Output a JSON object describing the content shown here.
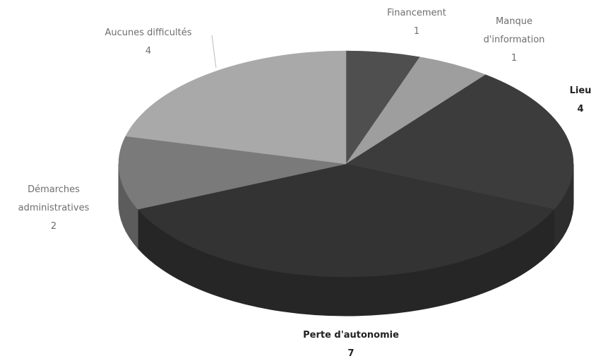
{
  "chart_data": {
    "type": "pie",
    "categories": [
      "Financement",
      "Manque d'information",
      "Lieu",
      "Perte d'autonomie",
      "Démarches administratives",
      "Aucunes difficultés"
    ],
    "values": [
      1,
      1,
      4,
      7,
      2,
      4
    ],
    "colors": [
      "#4f4f4f",
      "#9e9e9e",
      "#3c3c3c",
      "#333333",
      "#7a7a7a",
      "#a9a9a9"
    ]
  }
}
